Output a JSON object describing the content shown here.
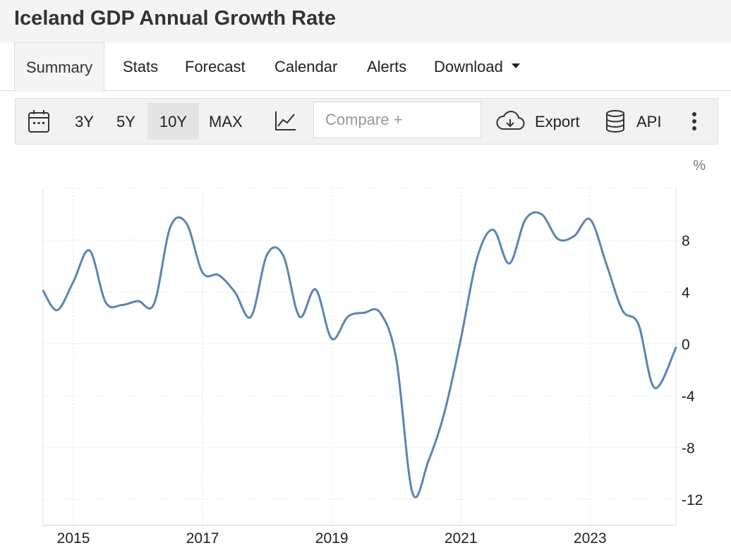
{
  "page": {
    "title": "Iceland GDP Annual Growth Rate"
  },
  "tabs": [
    {
      "label": "Summary",
      "active": true
    },
    {
      "label": "Stats"
    },
    {
      "label": "Forecast"
    },
    {
      "label": "Calendar"
    },
    {
      "label": "Alerts"
    },
    {
      "label": "Download"
    }
  ],
  "toolbar": {
    "ranges": [
      "3Y",
      "5Y",
      "10Y",
      "MAX"
    ],
    "selected_range": "10Y",
    "compare_placeholder": "Compare +",
    "export_label": "Export",
    "api_label": "API"
  },
  "colors": {
    "line": "#5b84b6",
    "grid": "#e3e3e3"
  },
  "chart_data": {
    "type": "line",
    "title": "Iceland GDP Annual Growth Rate",
    "unit_label": "%",
    "xlabel": "",
    "ylabel": "%",
    "xlim": [
      2014.53,
      2024.33
    ],
    "ylim": [
      -14,
      12
    ],
    "yticks": [
      8,
      4,
      0,
      -4,
      -8,
      -12
    ],
    "xticks": [
      2015,
      2017,
      2019,
      2021,
      2023
    ],
    "series": [
      {
        "name": "GDP Annual Growth Rate",
        "x": [
          2014.53,
          2014.75,
          2015.0,
          2015.25,
          2015.5,
          2015.75,
          2016.0,
          2016.25,
          2016.5,
          2016.75,
          2017.0,
          2017.25,
          2017.5,
          2017.75,
          2018.0,
          2018.25,
          2018.5,
          2018.75,
          2019.0,
          2019.25,
          2019.5,
          2019.75,
          2020.0,
          2020.25,
          2020.5,
          2020.75,
          2021.0,
          2021.25,
          2021.5,
          2021.75,
          2022.0,
          2022.25,
          2022.5,
          2022.75,
          2023.0,
          2023.25,
          2023.5,
          2023.75,
          2024.0,
          2024.33
        ],
        "y": [
          4.1,
          2.6,
          4.8,
          7.2,
          3.2,
          3.0,
          3.3,
          3.1,
          9.0,
          9.3,
          5.5,
          5.3,
          4.0,
          2.1,
          6.9,
          6.8,
          2.1,
          4.2,
          0.4,
          2.1,
          2.4,
          2.4,
          -1.2,
          -11.5,
          -9.0,
          -5.2,
          0.4,
          6.6,
          8.8,
          6.2,
          9.6,
          10.0,
          8.1,
          8.3,
          9.6,
          6.2,
          2.6,
          1.5,
          -3.4,
          -0.3
        ]
      }
    ]
  }
}
